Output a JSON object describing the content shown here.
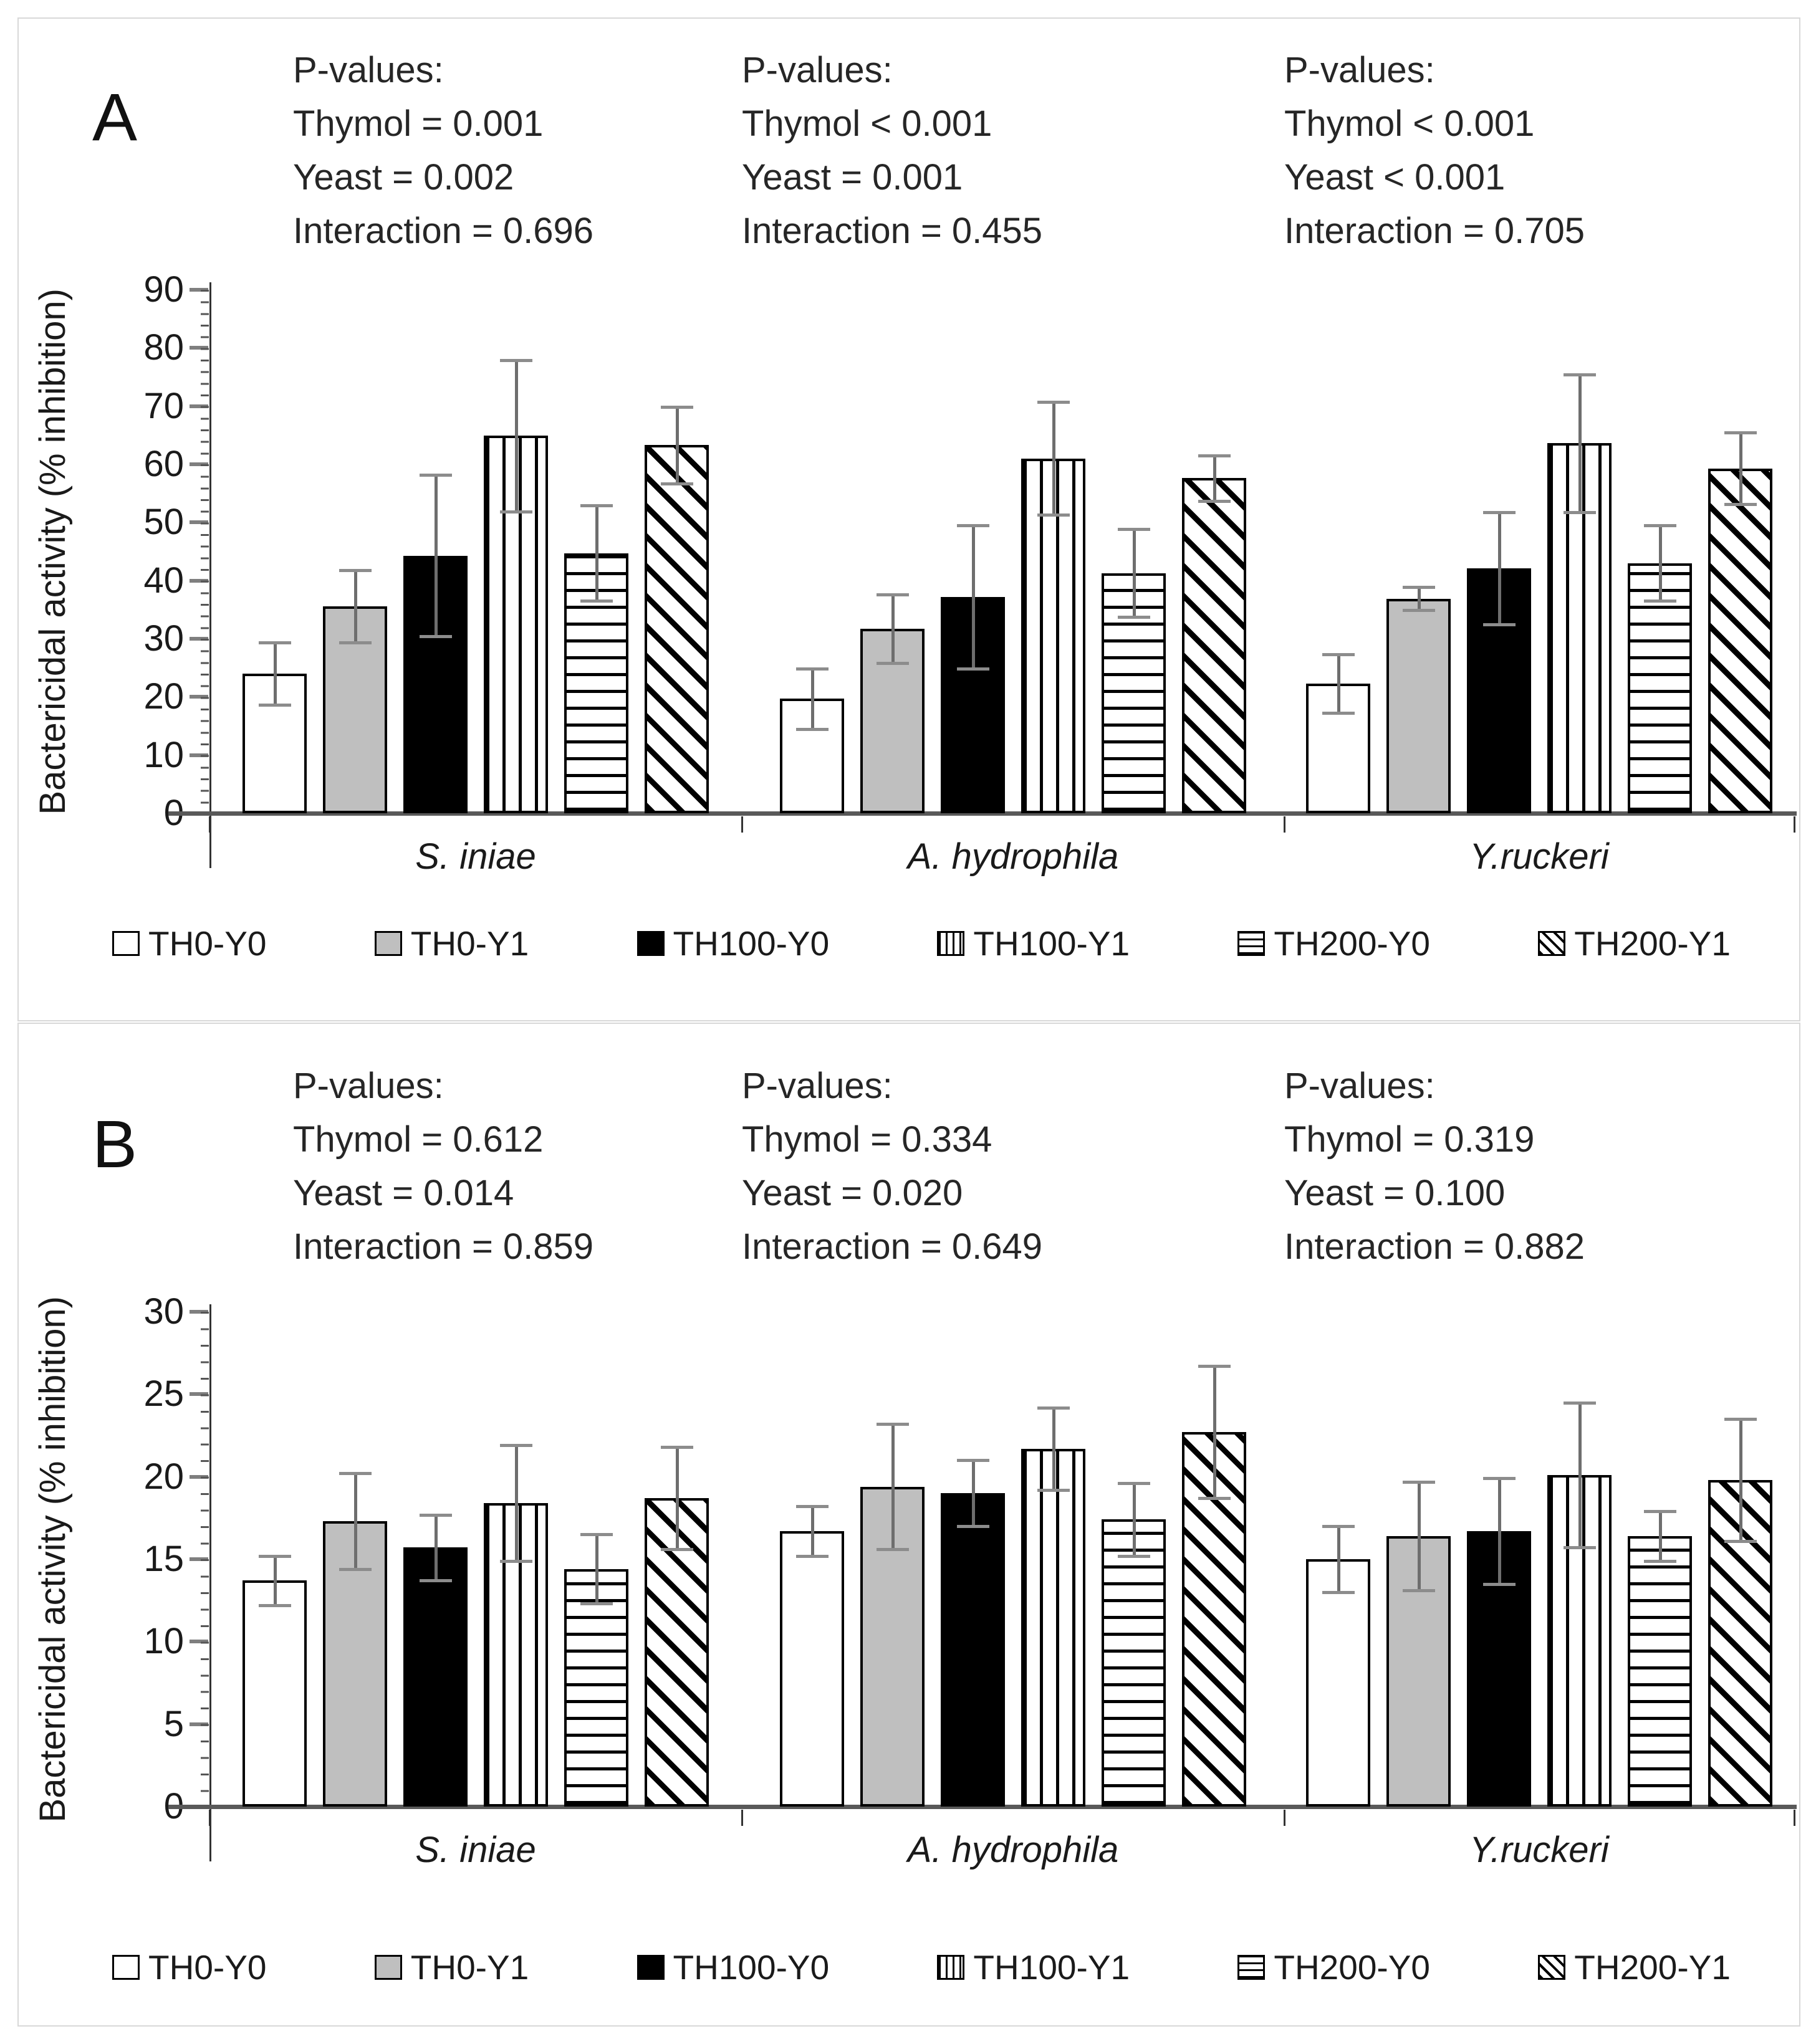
{
  "colors": {
    "bar_gray": "#bfbfbf",
    "bar_black": "#000000",
    "bar_white": "#ffffff",
    "stripe_black": "#000000",
    "error_bar": "#6e6e6e",
    "baseline": "#595959",
    "panel_border": "#d8d8d8",
    "text": "#1a1a1a"
  },
  "legend": [
    {
      "label": "TH0-Y0",
      "pattern": "white"
    },
    {
      "label": "TH0-Y1",
      "pattern": "gray"
    },
    {
      "label": "TH100-Y0",
      "pattern": "black"
    },
    {
      "label": "TH100-Y1",
      "pattern": "vstripe"
    },
    {
      "label": "TH200-Y0",
      "pattern": "hstripe"
    },
    {
      "label": "TH200-Y1",
      "pattern": "dstripe"
    }
  ],
  "chart_data": [
    {
      "panel": "A",
      "type": "bar",
      "ylabel": "Bactericidal activity (% inhibition)",
      "ylim": [
        0,
        90
      ],
      "yticks": [
        90,
        80,
        70,
        60,
        50,
        40,
        30,
        20,
        10,
        0
      ],
      "minor_tick_units": 2,
      "grid": false,
      "legend_position": "bottom",
      "categories": [
        "S. iniae",
        "A. hydrophila",
        "Y.ruckeri"
      ],
      "p_values": [
        {
          "lines": [
            "P-values:",
            "Thymol = 0.001",
            "Yeast = 0.002",
            "Interaction = 0.696"
          ]
        },
        {
          "lines": [
            "P-values:",
            "Thymol < 0.001",
            "Yeast = 0.001",
            "Interaction = 0.455"
          ]
        },
        {
          "lines": [
            "P-values:",
            "Thymol < 0.001",
            "Yeast < 0.001",
            "Interaction = 0.705"
          ]
        }
      ],
      "series": [
        {
          "name": "TH0-Y0",
          "pattern": "white",
          "values": [
            24.0,
            19.7,
            22.3
          ],
          "errors": [
            5.4,
            5.2,
            5.0
          ]
        },
        {
          "name": "TH0-Y1",
          "pattern": "gray",
          "values": [
            35.6,
            31.7,
            36.9
          ],
          "errors": [
            6.2,
            5.9,
            2.0
          ]
        },
        {
          "name": "TH100-Y0",
          "pattern": "black",
          "values": [
            44.3,
            37.2,
            42.1
          ],
          "errors": [
            13.9,
            12.3,
            9.6
          ]
        },
        {
          "name": "TH100-Y1",
          "pattern": "vstripe",
          "values": [
            64.9,
            61.0,
            63.6
          ],
          "errors": [
            13.0,
            9.7,
            11.8
          ]
        },
        {
          "name": "TH200-Y0",
          "pattern": "hstripe",
          "values": [
            44.7,
            41.3,
            43.0
          ],
          "errors": [
            8.2,
            7.6,
            6.5
          ]
        },
        {
          "name": "TH200-Y1",
          "pattern": "dstripe",
          "values": [
            63.3,
            57.6,
            59.3
          ],
          "errors": [
            6.6,
            3.9,
            6.2
          ]
        }
      ]
    },
    {
      "panel": "B",
      "type": "bar",
      "ylabel": "Bactericidal activity (% inhibition)",
      "ylim": [
        0,
        30
      ],
      "yticks": [
        30,
        25,
        20,
        15,
        10,
        5,
        0
      ],
      "minor_tick_units": 1,
      "grid": false,
      "legend_position": "bottom",
      "categories": [
        "S. iniae",
        "A. hydrophila",
        "Y.ruckeri"
      ],
      "p_values": [
        {
          "lines": [
            "P-values:",
            "Thymol = 0.612",
            "Yeast = 0.014",
            "Interaction = 0.859"
          ]
        },
        {
          "lines": [
            "P-values:",
            "Thymol = 0.334",
            "Yeast = 0.020",
            "Interaction = 0.649"
          ]
        },
        {
          "lines": [
            "P-values:",
            "Thymol = 0.319",
            "Yeast = 0.100",
            "Interaction = 0.882"
          ]
        }
      ],
      "series": [
        {
          "name": "TH0-Y0",
          "pattern": "white",
          "values": [
            13.7,
            16.7,
            15.0
          ],
          "errors": [
            1.5,
            1.5,
            2.0
          ]
        },
        {
          "name": "TH0-Y1",
          "pattern": "gray",
          "values": [
            17.3,
            19.4,
            16.4
          ],
          "errors": [
            2.9,
            3.8,
            3.3
          ]
        },
        {
          "name": "TH100-Y0",
          "pattern": "black",
          "values": [
            15.7,
            19.0,
            16.7
          ],
          "errors": [
            2.0,
            2.0,
            3.2
          ]
        },
        {
          "name": "TH100-Y1",
          "pattern": "vstripe",
          "values": [
            18.4,
            21.7,
            20.1
          ],
          "errors": [
            3.5,
            2.5,
            4.4
          ]
        },
        {
          "name": "TH200-Y0",
          "pattern": "hstripe",
          "values": [
            14.4,
            17.4,
            16.4
          ],
          "errors": [
            2.1,
            2.2,
            1.5
          ]
        },
        {
          "name": "TH200-Y1",
          "pattern": "dstripe",
          "values": [
            18.7,
            22.7,
            19.8
          ],
          "errors": [
            3.1,
            4.0,
            3.7
          ]
        }
      ]
    }
  ]
}
